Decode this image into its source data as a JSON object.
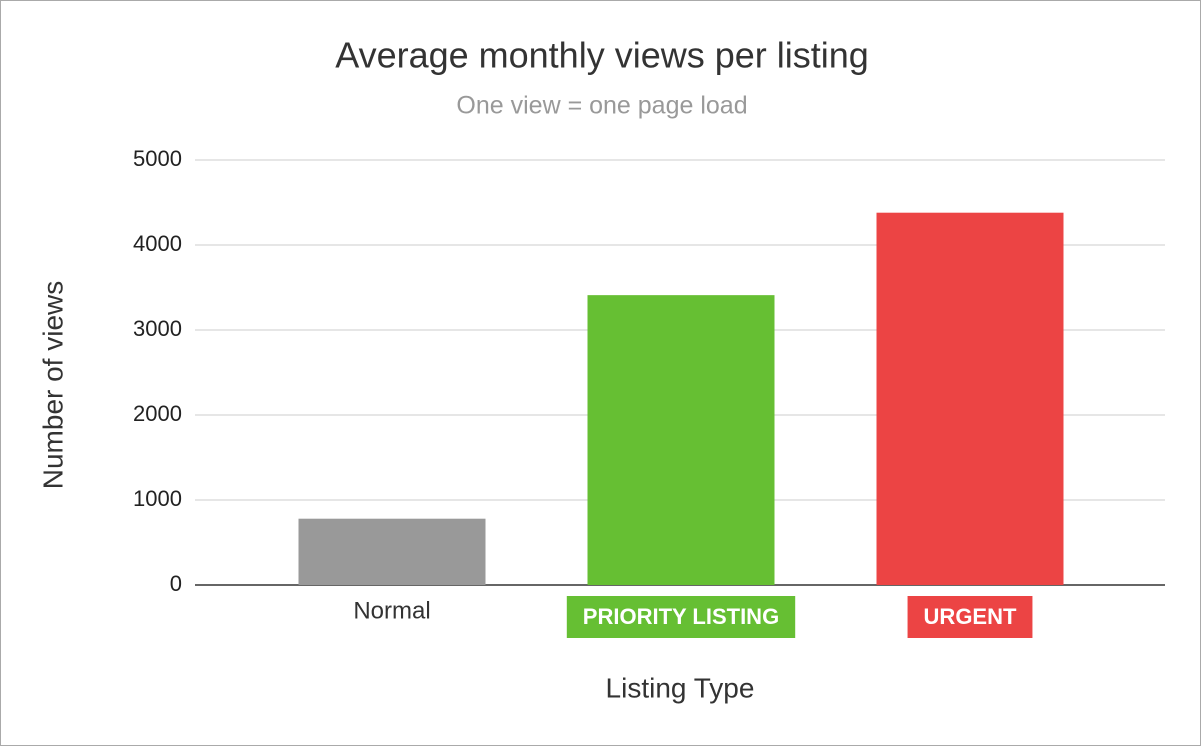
{
  "chart_data": {
    "type": "bar",
    "title": "Average monthly views per listing",
    "subtitle": "One view = one page load",
    "x_label": "Listing Type",
    "y_label": "Number of views",
    "categories": [
      "Normal",
      "PRIORITY LISTING",
      "URGENT"
    ],
    "values": [
      780,
      3410,
      4380
    ],
    "colors": [
      "#999999",
      "#66bf33",
      "#ec4444"
    ],
    "label_badges": [
      false,
      true,
      true
    ],
    "ylim": [
      0,
      5000
    ],
    "yticks": [
      0,
      1000,
      2000,
      3000,
      4000,
      5000
    ],
    "grid": true
  }
}
